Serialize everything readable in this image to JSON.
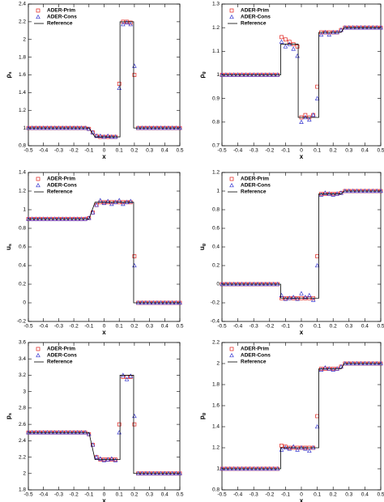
{
  "chart_data": [
    {
      "type": "scatter-line",
      "x_label": "x",
      "y_label": "ρ",
      "y_label_sub": "s",
      "xlim": [
        -0.5,
        0.5
      ],
      "xticks": [
        -0.5,
        -0.4,
        -0.3,
        -0.2,
        -0.1,
        0,
        0.1,
        0.2,
        0.3,
        0.4,
        0.5
      ],
      "ylim": [
        0.8,
        2.4
      ],
      "yticks": [
        0.8,
        1,
        1.2,
        1.4,
        1.6,
        1.8,
        2,
        2.2,
        2.4
      ],
      "x": [
        -0.5,
        -0.475,
        -0.45,
        -0.425,
        -0.4,
        -0.375,
        -0.35,
        -0.325,
        -0.3,
        -0.275,
        -0.25,
        -0.225,
        -0.2,
        -0.175,
        -0.15,
        -0.125,
        -0.1,
        -0.075,
        -0.05,
        -0.025,
        0,
        0.025,
        0.05,
        0.075,
        0.1,
        0.125,
        0.15,
        0.175,
        0.2,
        0.225,
        0.25,
        0.275,
        0.3,
        0.325,
        0.35,
        0.375,
        0.4,
        0.425,
        0.45,
        0.475,
        0.5
      ],
      "series": [
        {
          "name": "ADER-Prim",
          "color": "#e0201b",
          "marker": "square",
          "values": [
            1,
            1,
            1,
            1,
            1,
            1,
            1,
            1,
            1,
            1,
            1,
            1,
            1,
            1,
            1,
            1,
            0.99,
            0.95,
            0.91,
            0.9,
            0.9,
            0.9,
            0.9,
            0.9,
            1.5,
            2.2,
            2.2,
            2.19,
            1.6,
            1,
            1,
            1,
            1,
            1,
            1,
            1,
            1,
            1,
            1,
            1,
            1
          ]
        },
        {
          "name": "ADER-Cons",
          "color": "#3a3ad0",
          "marker": "triangle",
          "values": [
            1,
            1,
            1,
            1,
            1,
            1,
            1,
            1,
            1,
            1,
            1,
            1,
            1,
            1,
            1,
            1,
            0.99,
            0.95,
            0.91,
            0.91,
            0.9,
            0.91,
            0.9,
            0.9,
            1.45,
            2.17,
            2.19,
            2.17,
            1.7,
            1,
            1,
            1,
            1,
            1,
            1,
            1,
            1,
            1,
            1,
            1,
            1
          ]
        },
        {
          "name": "Reference",
          "color": "#000000",
          "marker": "line",
          "x": [
            -0.5,
            -0.1,
            -0.06,
            0.105,
            0.105,
            0.195,
            0.195,
            0.5
          ],
          "values": [
            1,
            1,
            0.9,
            0.9,
            2.2,
            2.2,
            1,
            1
          ]
        }
      ]
    },
    {
      "type": "scatter-line",
      "x_label": "x",
      "y_label": "ρ",
      "y_label_sub": "g",
      "xlim": [
        -0.5,
        0.5
      ],
      "xticks": [
        -0.5,
        -0.4,
        -0.3,
        -0.2,
        -0.1,
        0,
        0.1,
        0.2,
        0.3,
        0.4,
        0.5
      ],
      "ylim": [
        0.7,
        1.3
      ],
      "yticks": [
        0.7,
        0.8,
        0.9,
        1,
        1.1,
        1.2,
        1.3
      ],
      "x": [
        -0.5,
        -0.475,
        -0.45,
        -0.425,
        -0.4,
        -0.375,
        -0.35,
        -0.325,
        -0.3,
        -0.275,
        -0.25,
        -0.225,
        -0.2,
        -0.175,
        -0.15,
        -0.125,
        -0.1,
        -0.075,
        -0.05,
        -0.025,
        0,
        0.025,
        0.05,
        0.075,
        0.1,
        0.125,
        0.15,
        0.175,
        0.2,
        0.225,
        0.25,
        0.275,
        0.3,
        0.325,
        0.35,
        0.375,
        0.4,
        0.425,
        0.45,
        0.475,
        0.5
      ],
      "series": [
        {
          "name": "ADER-Prim",
          "color": "#e0201b",
          "marker": "square",
          "values": [
            1,
            1,
            1,
            1,
            1,
            1,
            1,
            1,
            1,
            1,
            1,
            1,
            1,
            1,
            1,
            1.16,
            1.15,
            1.14,
            1.13,
            1.12,
            0.82,
            0.83,
            0.82,
            0.83,
            0.95,
            1.18,
            1.18,
            1.18,
            1.18,
            1.18,
            1.19,
            1.2,
            1.2,
            1.2,
            1.2,
            1.2,
            1.2,
            1.2,
            1.2,
            1.2,
            1.2
          ]
        },
        {
          "name": "ADER-Cons",
          "color": "#3a3ad0",
          "marker": "triangle",
          "values": [
            1,
            1,
            1,
            1,
            1,
            1,
            1,
            1,
            1,
            1,
            1,
            1,
            1,
            1,
            1,
            1.14,
            1.12,
            1.13,
            1.11,
            1.08,
            0.8,
            0.82,
            0.81,
            0.83,
            0.9,
            1.17,
            1.18,
            1.17,
            1.18,
            1.18,
            1.19,
            1.2,
            1.2,
            1.2,
            1.2,
            1.2,
            1.2,
            1.2,
            1.2,
            1.2,
            1.2
          ]
        },
        {
          "name": "Reference",
          "color": "#000000",
          "marker": "line",
          "x": [
            -0.5,
            -0.13,
            -0.13,
            -0.02,
            -0.02,
            0.11,
            0.11,
            0.25,
            0.27,
            0.5
          ],
          "values": [
            1,
            1,
            1.13,
            1.13,
            0.82,
            0.82,
            1.18,
            1.18,
            1.2,
            1.2
          ]
        }
      ]
    },
    {
      "type": "scatter-line",
      "x_label": "x",
      "y_label": "u",
      "y_label_sub": "s",
      "xlim": [
        -0.5,
        0.5
      ],
      "xticks": [
        -0.5,
        -0.4,
        -0.3,
        -0.2,
        -0.1,
        0,
        0.1,
        0.2,
        0.3,
        0.4,
        0.5
      ],
      "ylim": [
        -0.2,
        1.4
      ],
      "yticks": [
        -0.2,
        0,
        0.2,
        0.4,
        0.6,
        0.8,
        1,
        1.2,
        1.4
      ],
      "x": [
        -0.5,
        -0.475,
        -0.45,
        -0.425,
        -0.4,
        -0.375,
        -0.35,
        -0.325,
        -0.3,
        -0.275,
        -0.25,
        -0.225,
        -0.2,
        -0.175,
        -0.15,
        -0.125,
        -0.1,
        -0.075,
        -0.05,
        -0.025,
        0,
        0.025,
        0.05,
        0.075,
        0.1,
        0.125,
        0.15,
        0.175,
        0.2,
        0.225,
        0.25,
        0.275,
        0.3,
        0.325,
        0.35,
        0.375,
        0.4,
        0.425,
        0.45,
        0.475,
        0.5
      ],
      "series": [
        {
          "name": "ADER-Prim",
          "color": "#e0201b",
          "marker": "square",
          "values": [
            0.9,
            0.9,
            0.9,
            0.9,
            0.9,
            0.9,
            0.9,
            0.9,
            0.9,
            0.9,
            0.9,
            0.9,
            0.9,
            0.9,
            0.9,
            0.9,
            0.91,
            0.97,
            1.05,
            1.08,
            1.08,
            1.08,
            1.08,
            1.08,
            1.08,
            1.08,
            1.08,
            1.08,
            0.5,
            0,
            0,
            0,
            0,
            0,
            0,
            0,
            0,
            0,
            0,
            0,
            0
          ]
        },
        {
          "name": "ADER-Cons",
          "color": "#3a3ad0",
          "marker": "triangle",
          "values": [
            0.9,
            0.9,
            0.9,
            0.9,
            0.9,
            0.9,
            0.9,
            0.9,
            0.9,
            0.9,
            0.9,
            0.9,
            0.9,
            0.9,
            0.9,
            0.9,
            0.91,
            0.97,
            1.05,
            1.1,
            1.07,
            1.09,
            1.06,
            1.08,
            1.1,
            1.06,
            1.08,
            1.09,
            0.4,
            0,
            0,
            0,
            0,
            0,
            0,
            0,
            0,
            0,
            0,
            0,
            0
          ]
        },
        {
          "name": "Reference",
          "color": "#000000",
          "marker": "line",
          "x": [
            -0.5,
            -0.1,
            -0.06,
            0.195,
            0.195,
            0.5
          ],
          "values": [
            0.9,
            0.9,
            1.08,
            1.08,
            0,
            0
          ]
        }
      ]
    },
    {
      "type": "scatter-line",
      "x_label": "x",
      "y_label": "u",
      "y_label_sub": "g",
      "xlim": [
        -0.5,
        0.5
      ],
      "xticks": [
        -0.5,
        -0.4,
        -0.3,
        -0.2,
        -0.1,
        0,
        0.1,
        0.2,
        0.3,
        0.4,
        0.5
      ],
      "ylim": [
        -0.4,
        1.2
      ],
      "yticks": [
        -0.4,
        -0.2,
        0,
        0.2,
        0.4,
        0.6,
        0.8,
        1,
        1.2
      ],
      "x": [
        -0.5,
        -0.475,
        -0.45,
        -0.425,
        -0.4,
        -0.375,
        -0.35,
        -0.325,
        -0.3,
        -0.275,
        -0.25,
        -0.225,
        -0.2,
        -0.175,
        -0.15,
        -0.125,
        -0.1,
        -0.075,
        -0.05,
        -0.025,
        0,
        0.025,
        0.05,
        0.075,
        0.1,
        0.125,
        0.15,
        0.175,
        0.2,
        0.225,
        0.25,
        0.275,
        0.3,
        0.325,
        0.35,
        0.375,
        0.4,
        0.425,
        0.45,
        0.475,
        0.5
      ],
      "series": [
        {
          "name": "ADER-Prim",
          "color": "#e0201b",
          "marker": "square",
          "values": [
            0,
            0,
            0,
            0,
            0,
            0,
            0,
            0,
            0,
            0,
            0,
            0,
            0,
            0,
            0,
            -0.15,
            -0.15,
            -0.15,
            -0.15,
            -0.15,
            -0.15,
            -0.15,
            -0.15,
            -0.15,
            0.3,
            0.97,
            0.97,
            0.97,
            0.97,
            0.97,
            0.98,
            1,
            1,
            1,
            1,
            1,
            1,
            1,
            1,
            1,
            1
          ]
        },
        {
          "name": "ADER-Cons",
          "color": "#3a3ad0",
          "marker": "triangle",
          "values": [
            0,
            0,
            0,
            0,
            0,
            0,
            0,
            0,
            0,
            0,
            0,
            0,
            0,
            0,
            0,
            -0.12,
            -0.16,
            -0.15,
            -0.14,
            -0.16,
            -0.1,
            -0.14,
            -0.12,
            -0.17,
            0.2,
            0.96,
            0.98,
            0.97,
            0.96,
            0.97,
            0.98,
            1,
            1,
            1,
            1,
            1,
            1,
            1,
            1,
            1,
            1
          ]
        },
        {
          "name": "Reference",
          "color": "#000000",
          "marker": "line",
          "x": [
            -0.5,
            -0.13,
            -0.13,
            0.11,
            0.11,
            0.25,
            0.27,
            0.5
          ],
          "values": [
            0,
            0,
            -0.15,
            -0.15,
            0.97,
            0.97,
            1,
            1
          ]
        }
      ]
    },
    {
      "type": "scatter-line",
      "x_label": "x",
      "y_label": "p",
      "y_label_sub": "s",
      "xlim": [
        -0.5,
        0.5
      ],
      "xticks": [
        -0.5,
        -0.4,
        -0.3,
        -0.2,
        -0.1,
        0,
        0.1,
        0.2,
        0.3,
        0.4,
        0.5
      ],
      "ylim": [
        1.8,
        3.6
      ],
      "yticks": [
        1.8,
        2,
        2.2,
        2.4,
        2.6,
        2.8,
        3,
        3.2,
        3.4,
        3.6
      ],
      "x": [
        -0.5,
        -0.475,
        -0.45,
        -0.425,
        -0.4,
        -0.375,
        -0.35,
        -0.325,
        -0.3,
        -0.275,
        -0.25,
        -0.225,
        -0.2,
        -0.175,
        -0.15,
        -0.125,
        -0.1,
        -0.075,
        -0.05,
        -0.025,
        0,
        0.025,
        0.05,
        0.075,
        0.1,
        0.125,
        0.15,
        0.175,
        0.2,
        0.225,
        0.25,
        0.275,
        0.3,
        0.325,
        0.35,
        0.375,
        0.4,
        0.425,
        0.45,
        0.475,
        0.5
      ],
      "series": [
        {
          "name": "ADER-Prim",
          "color": "#e0201b",
          "marker": "square",
          "values": [
            2.5,
            2.5,
            2.5,
            2.5,
            2.5,
            2.5,
            2.5,
            2.5,
            2.5,
            2.5,
            2.5,
            2.5,
            2.5,
            2.5,
            2.5,
            2.5,
            2.48,
            2.35,
            2.2,
            2.17,
            2.17,
            2.17,
            2.17,
            2.17,
            2.6,
            3.18,
            3.18,
            3.18,
            2.6,
            2,
            2,
            2,
            2,
            2,
            2,
            2,
            2,
            2,
            2,
            2,
            2
          ]
        },
        {
          "name": "ADER-Cons",
          "color": "#3a3ad0",
          "marker": "triangle",
          "values": [
            2.5,
            2.5,
            2.5,
            2.5,
            2.5,
            2.5,
            2.5,
            2.5,
            2.5,
            2.5,
            2.5,
            2.5,
            2.5,
            2.5,
            2.5,
            2.5,
            2.48,
            2.35,
            2.2,
            2.18,
            2.16,
            2.17,
            2.18,
            2.16,
            2.5,
            3.2,
            3.15,
            3.19,
            2.7,
            2,
            2,
            2,
            2,
            2,
            2,
            2,
            2,
            2,
            2,
            2,
            2
          ]
        },
        {
          "name": "Reference",
          "color": "#000000",
          "marker": "line",
          "x": [
            -0.5,
            -0.1,
            -0.06,
            0.105,
            0.105,
            0.195,
            0.195,
            0.5
          ],
          "values": [
            2.5,
            2.5,
            2.17,
            2.17,
            3.2,
            3.2,
            2,
            2
          ]
        }
      ]
    },
    {
      "type": "scatter-line",
      "x_label": "x",
      "y_label": "p",
      "y_label_sub": "g",
      "xlim": [
        -0.5,
        0.5
      ],
      "xticks": [
        -0.5,
        -0.4,
        -0.3,
        -0.2,
        -0.1,
        0,
        0.1,
        0.2,
        0.3,
        0.4,
        0.5
      ],
      "ylim": [
        0.8,
        2.2
      ],
      "yticks": [
        0.8,
        1,
        1.2,
        1.4,
        1.6,
        1.8,
        2,
        2.2
      ],
      "x": [
        -0.5,
        -0.475,
        -0.45,
        -0.425,
        -0.4,
        -0.375,
        -0.35,
        -0.325,
        -0.3,
        -0.275,
        -0.25,
        -0.225,
        -0.2,
        -0.175,
        -0.15,
        -0.125,
        -0.1,
        -0.075,
        -0.05,
        -0.025,
        0,
        0.025,
        0.05,
        0.075,
        0.1,
        0.125,
        0.15,
        0.175,
        0.2,
        0.225,
        0.25,
        0.275,
        0.3,
        0.325,
        0.35,
        0.375,
        0.4,
        0.425,
        0.45,
        0.475,
        0.5
      ],
      "series": [
        {
          "name": "ADER-Prim",
          "color": "#e0201b",
          "marker": "square",
          "values": [
            1,
            1,
            1,
            1,
            1,
            1,
            1,
            1,
            1,
            1,
            1,
            1,
            1,
            1,
            1,
            1.22,
            1.21,
            1.2,
            1.2,
            1.2,
            1.2,
            1.2,
            1.2,
            1.2,
            1.5,
            1.95,
            1.95,
            1.95,
            1.95,
            1.95,
            1.97,
            2,
            2,
            2,
            2,
            2,
            2,
            2,
            2,
            2,
            2
          ]
        },
        {
          "name": "ADER-Cons",
          "color": "#3a3ad0",
          "marker": "triangle",
          "values": [
            1,
            1,
            1,
            1,
            1,
            1,
            1,
            1,
            1,
            1,
            1,
            1,
            1,
            1,
            1,
            1.18,
            1.2,
            1.19,
            1.21,
            1.18,
            1.2,
            1.19,
            1.17,
            1.2,
            1.4,
            1.94,
            1.96,
            1.95,
            1.94,
            1.95,
            1.97,
            2,
            2,
            2,
            2,
            2,
            2,
            2,
            2,
            2,
            2
          ]
        },
        {
          "name": "Reference",
          "color": "#000000",
          "marker": "line",
          "x": [
            -0.5,
            -0.13,
            -0.13,
            0.11,
            0.11,
            0.25,
            0.27,
            0.5
          ],
          "values": [
            1,
            1,
            1.2,
            1.2,
            1.95,
            1.95,
            2,
            2
          ]
        }
      ]
    }
  ]
}
